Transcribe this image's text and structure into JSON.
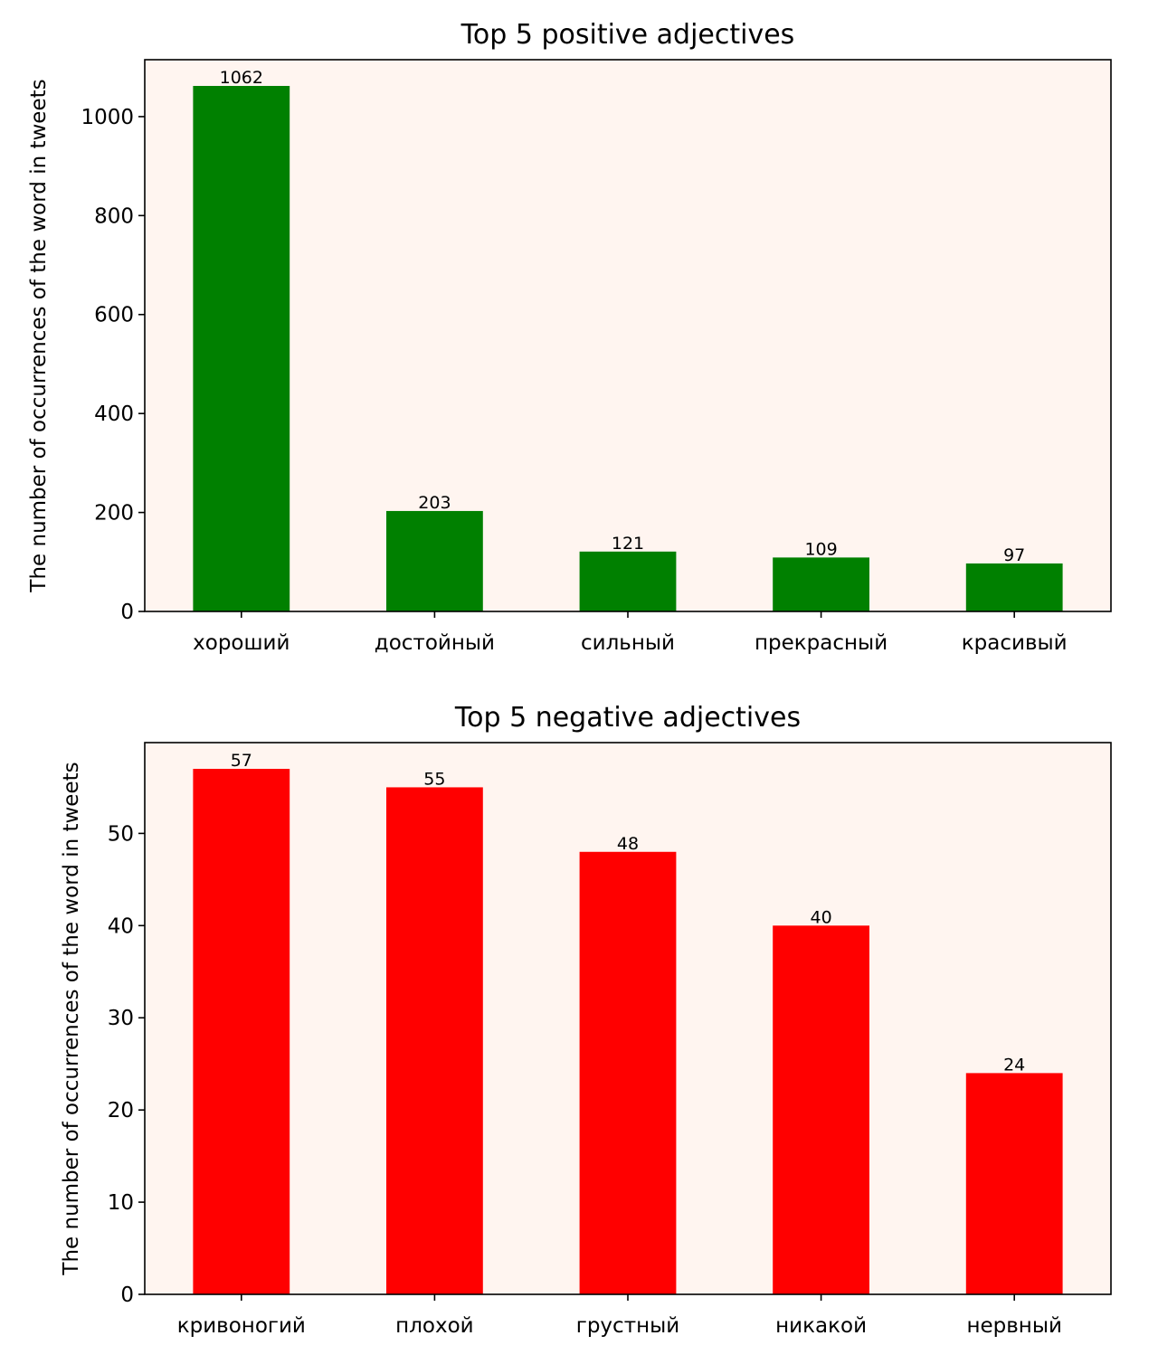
{
  "chart_data": [
    {
      "type": "bar",
      "title": "Top 5 positive adjectives",
      "xlabel": "",
      "ylabel": "The number of occurrences of the word in tweets",
      "categories": [
        "хороший",
        "достойный",
        "сильный",
        "прекрасный",
        "красивый"
      ],
      "values": [
        1062,
        203,
        121,
        109,
        97
      ],
      "data_labels": [
        "1062",
        "203",
        "121",
        "109",
        "97"
      ],
      "ylim": [
        0,
        1115
      ],
      "yticks": [
        0,
        200,
        400,
        600,
        800,
        1000
      ],
      "ytick_labels": [
        "0",
        "200",
        "400",
        "600",
        "800",
        "1000"
      ],
      "bar_color": "#008000",
      "background_color": "#fff5f0",
      "grid": false,
      "legend": "none"
    },
    {
      "type": "bar",
      "title": "Top 5 negative adjectives",
      "xlabel": "",
      "ylabel": "The number of occurrences of the word in tweets",
      "categories": [
        "кривоногий",
        "плохой",
        "грустный",
        "никакой",
        "нервный"
      ],
      "values": [
        57,
        55,
        48,
        40,
        24
      ],
      "data_labels": [
        "57",
        "55",
        "48",
        "40",
        "24"
      ],
      "ylim": [
        0,
        59.85
      ],
      "yticks": [
        0,
        10,
        20,
        30,
        40,
        50
      ],
      "ytick_labels": [
        "0",
        "10",
        "20",
        "30",
        "40",
        "50"
      ],
      "bar_color": "#ff0000",
      "background_color": "#fff5f0",
      "grid": false,
      "legend": "none"
    }
  ]
}
